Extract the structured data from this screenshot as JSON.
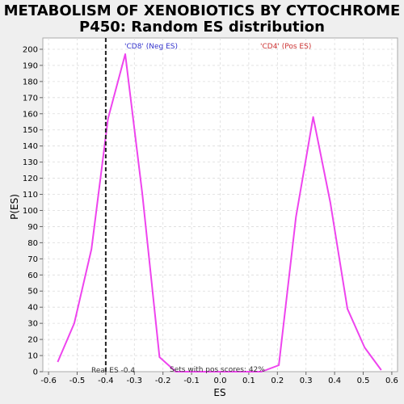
{
  "chart_data": {
    "type": "line",
    "title_line1": "METABOLISM OF XENOBIOTICS BY CYTOCHROME",
    "title_line2": "P450: Random ES distribution",
    "xlabel": "ES",
    "ylabel": "P(ES)",
    "xlim": [
      -0.62,
      0.62
    ],
    "ylim": [
      0,
      207
    ],
    "xticks": [
      -0.6,
      -0.5,
      -0.4,
      -0.3,
      -0.2,
      -0.1,
      0.0,
      0.1,
      0.2,
      0.3,
      0.4,
      0.5,
      0.6
    ],
    "xtick_labels": [
      "-0.6",
      "-0.5",
      "-0.4",
      "-0.3",
      "-0.2",
      "-0.1",
      "0.0",
      "0.1",
      "0.2",
      "0.3",
      "0.4",
      "0.5",
      "0.6"
    ],
    "yticks": [
      0,
      10,
      20,
      30,
      40,
      50,
      60,
      70,
      80,
      90,
      100,
      110,
      120,
      130,
      140,
      150,
      160,
      170,
      180,
      190,
      200
    ],
    "grid": true,
    "series": [
      {
        "color": "#ee44ee",
        "x": [
          -0.568,
          -0.51,
          -0.45,
          -0.392,
          -0.332,
          -0.272,
          -0.212,
          -0.155,
          -0.095,
          -0.035,
          0.025,
          0.085,
          0.145,
          0.205,
          0.265,
          0.325,
          0.385,
          0.445,
          0.505,
          0.563
        ],
        "y": [
          6,
          30,
          76,
          157,
          197,
          110,
          9,
          0,
          0,
          0,
          0,
          0,
          0,
          4,
          96,
          158,
          105,
          39,
          15,
          1
        ]
      }
    ],
    "real_es": -0.4,
    "annotations": {
      "neg_label": "'CD8' (Neg ES)",
      "pos_label": "'CD4' (Pos ES)",
      "real_es_label": "Real ES -0.4",
      "sets_label": "Sets with pos scores: 42%"
    },
    "colors": {
      "neg": "#3333cc",
      "pos": "#cc3333",
      "line": "#ee44ee"
    }
  }
}
